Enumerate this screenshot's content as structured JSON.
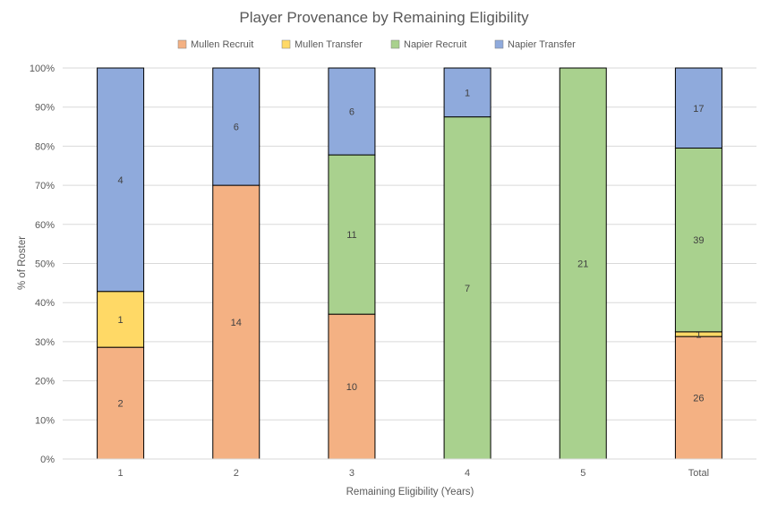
{
  "chart_data": {
    "type": "bar",
    "stacked": true,
    "normalized": true,
    "title": "Player Provenance by Remaining Eligibility",
    "xlabel": "Remaining Eligibility (Years)",
    "ylabel": "% of Roster",
    "ylim": [
      0,
      100
    ],
    "yticks": [
      "0%",
      "10%",
      "20%",
      "30%",
      "40%",
      "50%",
      "60%",
      "70%",
      "80%",
      "90%",
      "100%"
    ],
    "grid": true,
    "legend_position": "top",
    "categories": [
      "1",
      "2",
      "3",
      "4",
      "5",
      "Total"
    ],
    "series": [
      {
        "name": "Mullen Recruit",
        "color": "#F4B183",
        "values": [
          2,
          14,
          10,
          0,
          0,
          26
        ]
      },
      {
        "name": "Mullen Transfer",
        "color": "#FFD966",
        "values": [
          1,
          0,
          0,
          0,
          0,
          1
        ]
      },
      {
        "name": "Napier Recruit",
        "color": "#A9D18E",
        "values": [
          0,
          0,
          11,
          7,
          21,
          39
        ]
      },
      {
        "name": "Napier Transfer",
        "color": "#8FAADC",
        "values": [
          4,
          6,
          6,
          1,
          0,
          17
        ]
      }
    ]
  }
}
